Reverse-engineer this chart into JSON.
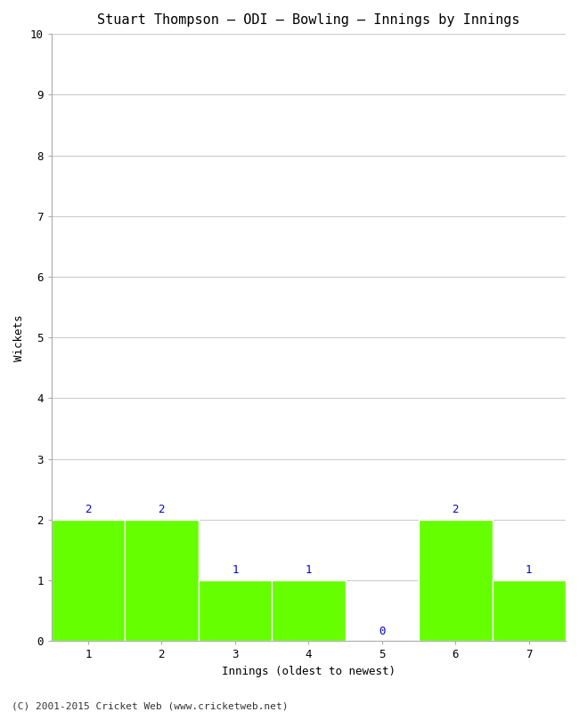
{
  "title": "Stuart Thompson – ODI – Bowling – Innings by Innings",
  "xlabel": "Innings (oldest to newest)",
  "ylabel": "Wickets",
  "categories": [
    "1",
    "2",
    "3",
    "4",
    "5",
    "6",
    "7"
  ],
  "values": [
    2,
    2,
    1,
    1,
    0,
    2,
    1
  ],
  "bar_color": "#66ff00",
  "bar_edge_color": "#66ff00",
  "label_color": "#0000cc",
  "ylim": [
    0,
    10
  ],
  "yticks": [
    0,
    1,
    2,
    3,
    4,
    5,
    6,
    7,
    8,
    9,
    10
  ],
  "title_fontsize": 11,
  "axis_label_fontsize": 9,
  "tick_fontsize": 9,
  "annotation_fontsize": 9,
  "footer": "(C) 2001-2015 Cricket Web (www.cricketweb.net)",
  "footer_fontsize": 8,
  "background_color": "#ffffff",
  "grid_color": "#cccccc",
  "font_family": "monospace"
}
